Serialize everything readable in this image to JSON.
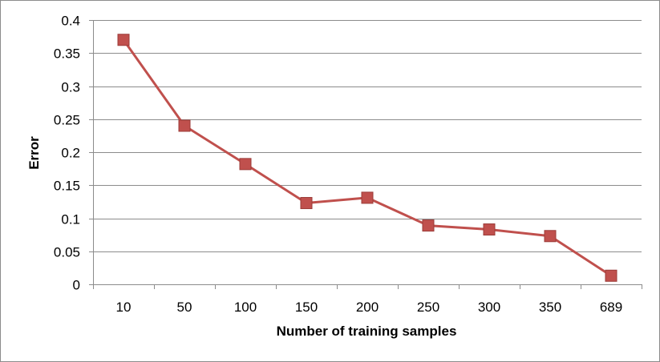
{
  "chart_data": {
    "type": "line",
    "title": "",
    "xlabel": "Number of training samples",
    "ylabel": "Error",
    "categories": [
      "10",
      "50",
      "100",
      "150",
      "200",
      "250",
      "300",
      "350",
      "689"
    ],
    "series": [
      {
        "values": [
          0.37,
          0.24,
          0.182,
          0.123,
          0.131,
          0.089,
          0.083,
          0.073,
          0.013
        ],
        "color": "#c0504d",
        "marker": "square"
      }
    ],
    "ylim": [
      0,
      0.4
    ],
    "yticks": [
      0,
      0.05,
      0.1,
      0.15,
      0.2,
      0.25,
      0.3,
      0.35,
      0.4
    ],
    "ytick_labels": [
      "0",
      "0.05",
      "0.1",
      "0.15",
      "0.2",
      "0.25",
      "0.3",
      "0.35",
      "0.4"
    ],
    "grid": "horizontal",
    "legend": "none"
  }
}
